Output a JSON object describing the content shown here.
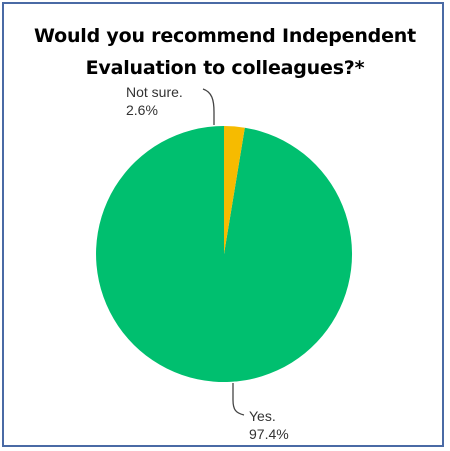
{
  "chart_data": {
    "type": "pie",
    "title": [
      "Would you recommend Independent",
      "Evaluation to colleagues?*"
    ],
    "slices": [
      {
        "label": "Yes.",
        "value": 97.4,
        "value_label": "97.4%",
        "color": "#00bf6f"
      },
      {
        "label": "Not sure.",
        "value": 2.6,
        "value_label": "2.6%",
        "color": "#f6bb00"
      }
    ],
    "start_angle_deg": 0,
    "direction": "counterclockwise",
    "legend": "none"
  }
}
